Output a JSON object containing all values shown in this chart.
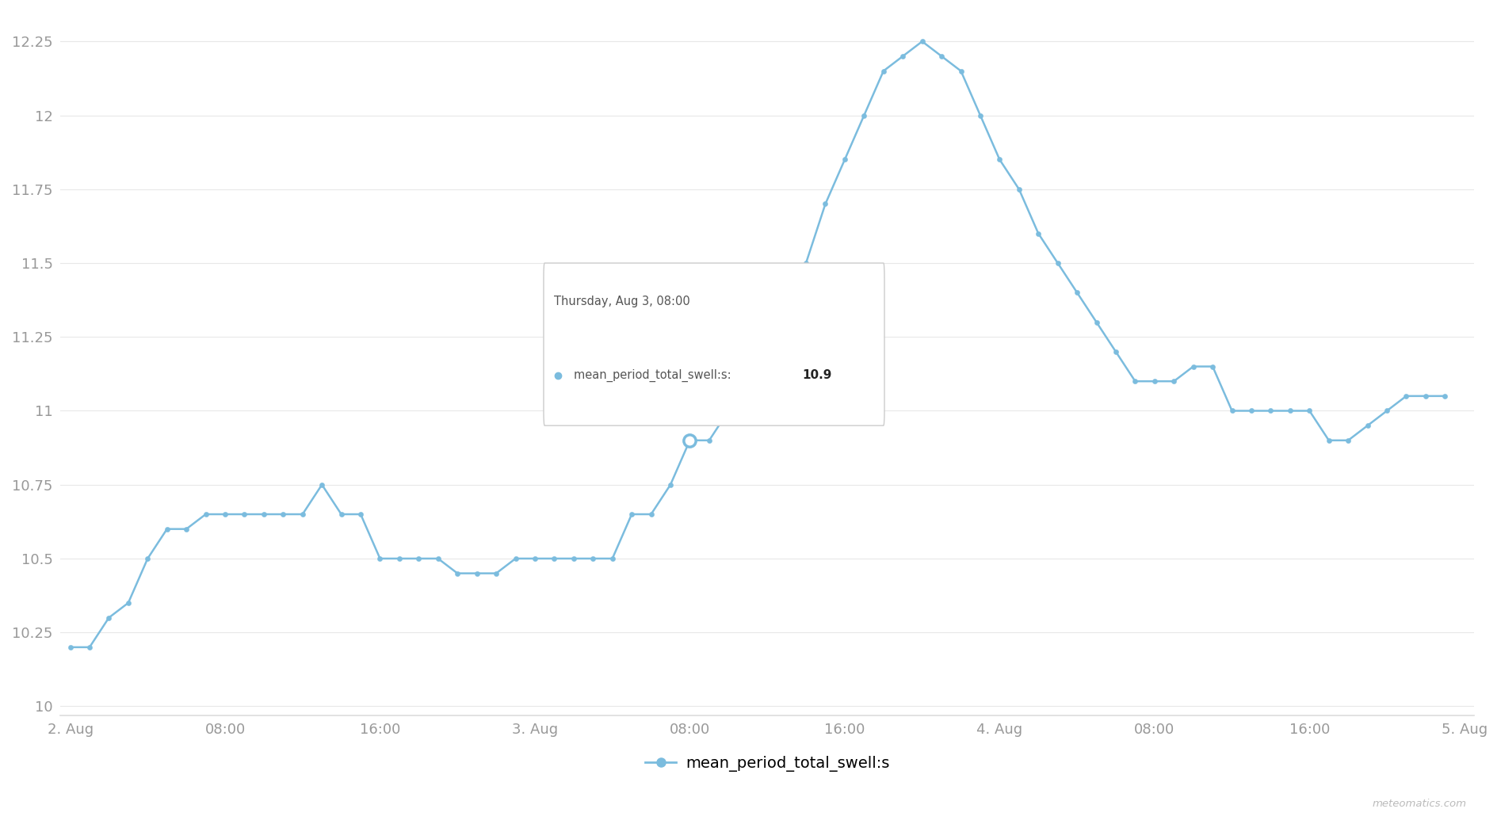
{
  "line_color": "#7bbcde",
  "marker_color": "#7bbcde",
  "background_color": "#ffffff",
  "grid_color": "#e8e8e8",
  "ylim": [
    9.97,
    12.35
  ],
  "yticks": [
    10.0,
    10.25,
    10.5,
    10.75,
    11.0,
    11.25,
    11.5,
    11.75,
    12.0,
    12.25
  ],
  "ytick_labels": [
    "10",
    "10.25",
    "10.5",
    "10.75",
    "11",
    "11.25",
    "11.5",
    "11.75",
    "12",
    "12.25"
  ],
  "legend_label": "mean_period_total_swell:s",
  "watermark": "meteomatics.com",
  "tooltip_title": "Thursday, Aug 3, 08:00",
  "tooltip_series": "mean_period_total_swell:s: ",
  "tooltip_value": "10.9",
  "tooltip_idx": 32,
  "tick_positions": [
    0,
    8,
    16,
    24,
    32,
    40,
    48,
    56,
    64,
    72
  ],
  "tick_labels": [
    "2. Aug",
    "08:00",
    "16:00",
    "3. Aug",
    "08:00",
    "16:00",
    "4. Aug",
    "08:00",
    "16:00",
    "5. Aug"
  ],
  "times": [
    0,
    1,
    2,
    3,
    4,
    5,
    6,
    7,
    8,
    9,
    10,
    11,
    12,
    13,
    14,
    15,
    16,
    17,
    18,
    19,
    20,
    21,
    22,
    23,
    24,
    25,
    26,
    27,
    28,
    29,
    30,
    31,
    32,
    33,
    34,
    35,
    36,
    37,
    38,
    39,
    40,
    41,
    42,
    43,
    44,
    45,
    46,
    47,
    48,
    49,
    50,
    51,
    52,
    53,
    54,
    55,
    56,
    57,
    58,
    59,
    60,
    61,
    62,
    63,
    64,
    65,
    66,
    67,
    68,
    69,
    70,
    71
  ],
  "values": [
    10.2,
    10.2,
    10.3,
    10.35,
    10.5,
    10.6,
    10.6,
    10.65,
    10.65,
    10.65,
    10.65,
    10.65,
    10.65,
    10.75,
    10.65,
    10.65,
    10.5,
    10.5,
    10.5,
    10.5,
    10.45,
    10.45,
    10.45,
    10.5,
    10.5,
    10.5,
    10.5,
    10.5,
    10.5,
    10.65,
    10.65,
    10.75,
    10.9,
    10.9,
    11.0,
    11.15,
    11.4,
    11.4,
    11.5,
    11.7,
    11.85,
    12.0,
    12.15,
    12.2,
    12.25,
    12.2,
    12.15,
    12.0,
    11.85,
    11.75,
    11.6,
    11.5,
    11.4,
    11.3,
    11.2,
    11.1,
    11.1,
    11.1,
    11.15,
    11.15,
    11.0,
    11.0,
    11.0,
    11.0,
    11.0,
    10.9,
    10.9,
    10.95,
    11.0,
    11.05,
    11.05,
    11.05
  ]
}
